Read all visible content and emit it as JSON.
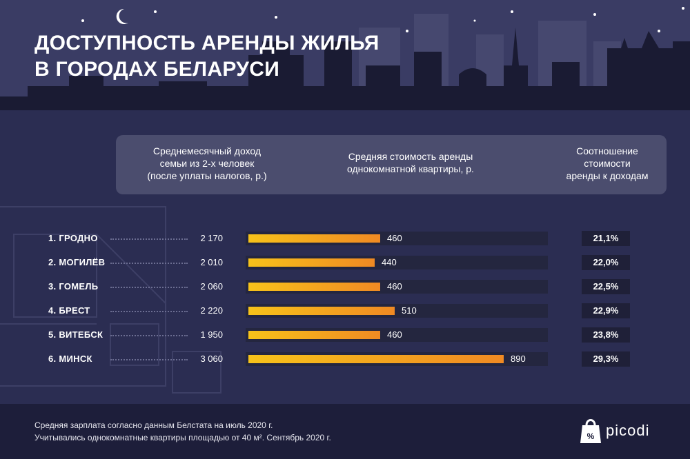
{
  "title_lines": [
    "ДОСТУПНОСТЬ АРЕНДЫ ЖИЛЬЯ",
    "В ГОРОДАХ БЕЛАРУСИ"
  ],
  "headers": {
    "income": [
      "Среднемесячный доход",
      "семьи из 2-х человек",
      "(после уплаты налогов, р.)"
    ],
    "rent": [
      "Средняя стоимость аренды",
      "однокомнатной квартиры, р."
    ],
    "ratio": [
      "Соотношение",
      "стоимости",
      "аренды к доходам"
    ]
  },
  "chart_data": {
    "type": "bar",
    "categories": [
      "1. ГРОДНО",
      "2. МОГИЛЁВ",
      "3. ГОМЕЛЬ",
      "4. БРЕСТ",
      "5. ВИТЕБСК",
      "6. МИНСК"
    ],
    "income": [
      "2 170",
      "2 010",
      "2 060",
      "2 220",
      "1 950",
      "3 060"
    ],
    "values": [
      460,
      440,
      460,
      510,
      460,
      890
    ],
    "value_labels": [
      "460",
      "440",
      "460",
      "510",
      "460",
      "890"
    ],
    "ratio": [
      "21,1%",
      "22,0%",
      "22,5%",
      "22,9%",
      "23,8%",
      "29,3%"
    ],
    "xlim": [
      0,
      1060
    ]
  },
  "footer": {
    "line1": "Средняя зарплата согласно данным Белстата на июль 2020 г.",
    "line2": "Учитывались однокомнатные квартиры площадью от 40 м². Сентябрь 2020 г."
  },
  "logo": {
    "text": "picodi",
    "icon": "picodi-bag-icon"
  },
  "colors": {
    "background": "#2b2d52",
    "bar_start": "#f7c21a",
    "bar_end": "#f08a23",
    "footer": "#1d1e3a",
    "sky": "#3a3c64"
  }
}
